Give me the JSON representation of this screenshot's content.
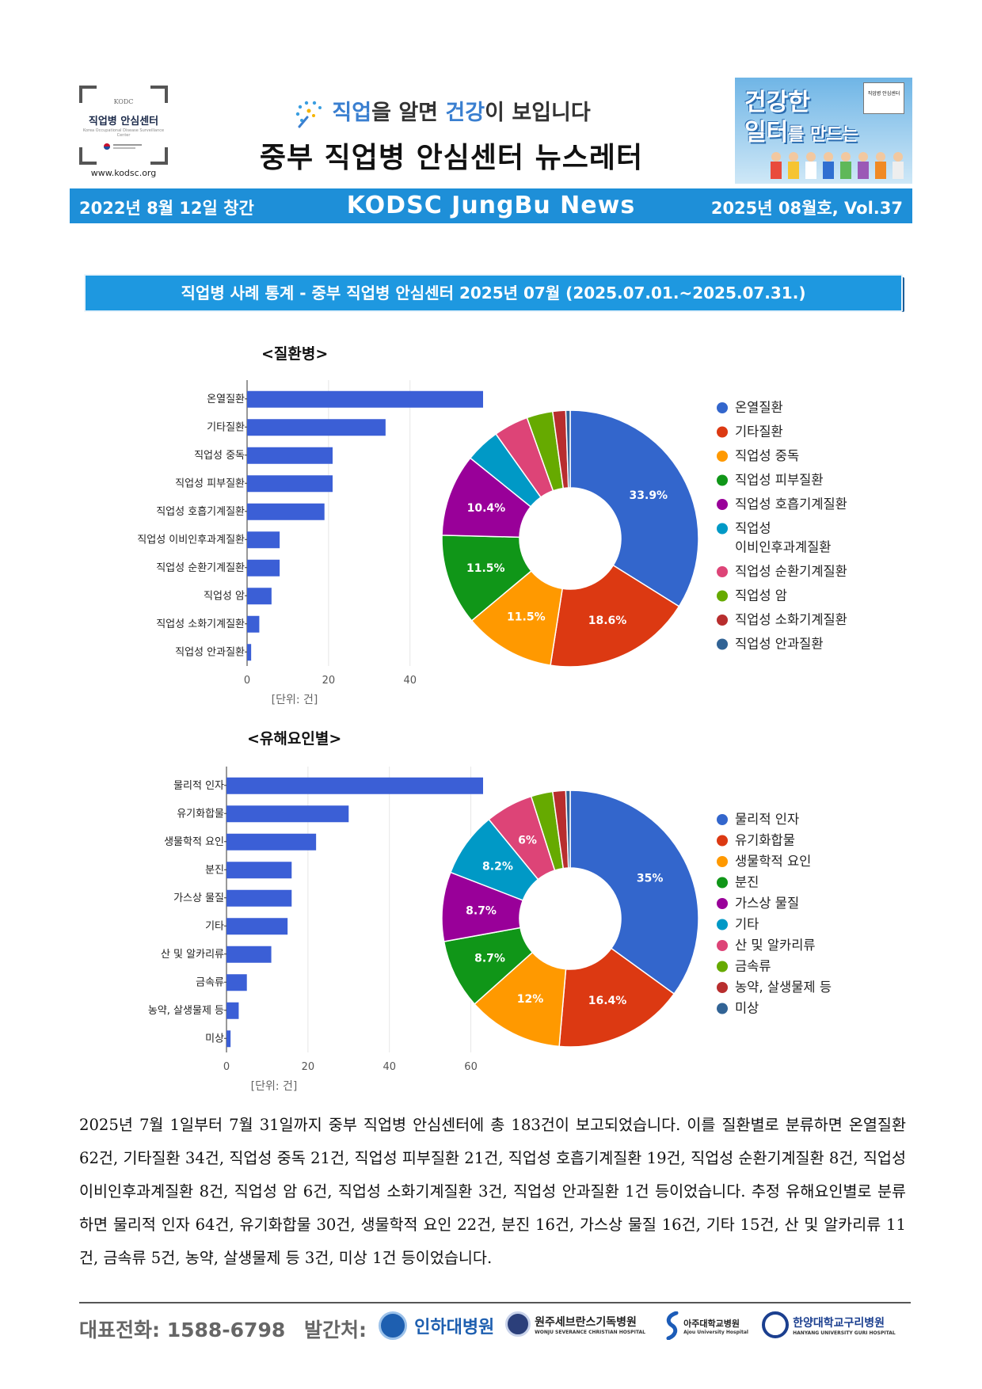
{
  "header": {
    "logo_small": "KODC",
    "logo_name": "직업병 안심센터",
    "logo_sub": "Korea Occupational Disease Surveillance Center",
    "site_url": "www.kodsc.org",
    "slogan_part1": "직업",
    "slogan_part2": "을 알면 ",
    "slogan_part3": "건강",
    "slogan_part4": "이 보입니다",
    "title": "중부 직업병 안심센터 뉴스레터",
    "banner_line1": "건강한",
    "banner_line2a": "일터",
    "banner_line2b": "를 만드는",
    "banner_mini": "직업병 안심센터"
  },
  "datebar": {
    "left": "2022년 8월 12일 창간",
    "center": "KODSC JungBu News",
    "right": "2025년 08월호, Vol.37"
  },
  "section_title": "직업병 사례 통계 - 중부 직업병 안심센터   2025년 07월 (2025.07.01.~2025.07.31.)",
  "colors": {
    "series": [
      "#3366cc",
      "#dc3912",
      "#ff9900",
      "#109618",
      "#990099",
      "#0099c6",
      "#dd4477",
      "#66aa00",
      "#b82e2e",
      "#316395"
    ],
    "bar": "#3b5fd6",
    "header_bar": "#1e8fd8"
  },
  "chart_data": [
    {
      "type": "bar",
      "title": "<질환병>",
      "orientation": "horizontal",
      "categories": [
        "온열질환",
        "기타질환",
        "직업성 중독",
        "직업성 피부질환",
        "직업성 호흡기계질환",
        "직업성 이비인후과계질환",
        "직업성 순환기계질환",
        "직업성 암",
        "직업성 소화기계질환",
        "직업성 안과질환"
      ],
      "values": [
        62,
        34,
        21,
        21,
        19,
        8,
        8,
        6,
        3,
        1
      ],
      "xticks": [
        "0",
        "20",
        "40",
        "60"
      ],
      "xlim": [
        0,
        70
      ],
      "unit_label": "[단위: 건]"
    },
    {
      "type": "pie",
      "style": "donut",
      "legend": [
        "온열질환",
        "기타질환",
        "직업성 중독",
        "직업성 피부질환",
        "직업성 호흡기계질환",
        "직업성 이비인후과계질환",
        "직업성 순환기계질환",
        "직업성 암",
        "직업성 소화기계질환",
        "직업성 안과질환"
      ],
      "legend_lines": [
        [
          "온열질환"
        ],
        [
          "기타질환"
        ],
        [
          "직업성 중독"
        ],
        [
          "직업성 피부질환"
        ],
        [
          "직업성 호흡기계질환"
        ],
        [
          "직업성",
          "이비인후과계질환"
        ],
        [
          "직업성 순환기계질환"
        ],
        [
          "직업성 암"
        ],
        [
          "직업성 소화기계질환"
        ],
        [
          "직업성 안과질환"
        ]
      ],
      "values": [
        62,
        34,
        21,
        21,
        19,
        8,
        8,
        6,
        3,
        1
      ],
      "slice_labels": [
        "33.9%",
        "18.6%",
        "11.5%",
        "11.5%",
        "10.4%",
        "",
        "",
        "",
        "",
        ""
      ]
    },
    {
      "type": "bar",
      "title": "<유해요인별>",
      "orientation": "horizontal",
      "categories": [
        "물리적 인자",
        "유기화합물",
        "생물학적 요인",
        "분진",
        "가스상 물질",
        "기타",
        "산 및 알카리류",
        "금속류",
        "농약, 살생물제 등",
        "미상"
      ],
      "values": [
        64,
        30,
        22,
        16,
        16,
        15,
        11,
        5,
        3,
        1
      ],
      "xticks": [
        "0",
        "20",
        "40",
        "60"
      ],
      "xlim": [
        0,
        70
      ],
      "unit_label": "[단위: 건]"
    },
    {
      "type": "pie",
      "style": "donut",
      "legend": [
        "물리적 인자",
        "유기화합물",
        "생물학적 요인",
        "분진",
        "가스상 물질",
        "기타",
        "산 및 알카리류",
        "금속류",
        "농약, 살생물제 등",
        "미상"
      ],
      "legend_lines": [
        [
          "물리적 인자"
        ],
        [
          "유기화합물"
        ],
        [
          "생물학적 요인"
        ],
        [
          "분진"
        ],
        [
          "가스상 물질"
        ],
        [
          "기타"
        ],
        [
          "산 및 알카리류"
        ],
        [
          "금속류"
        ],
        [
          "농약, 살생물제 등"
        ],
        [
          "미상"
        ]
      ],
      "values": [
        64,
        30,
        22,
        16,
        16,
        15,
        11,
        5,
        3,
        1
      ],
      "slice_labels": [
        "35%",
        "16.4%",
        "12%",
        "8.7%",
        "8.7%",
        "8.2%",
        "6%",
        "",
        "",
        ""
      ]
    }
  ],
  "body_paragraph": "2025년 7월 1일부터 7월 31일까지 중부 직업병 안심센터에 총 183건이 보고되었습니다. 이를 질환별로 분류하면 온열질환 62건, 기타질환 34건, 직업성 중독 21건, 직업성 피부질환 21건, 직업성 호흡기계질환 19건, 직업성 순환기계질환 8건, 직업성 이비인후과계질환 8건, 직업성 암 6건, 직업성 소화기계질환 3건, 직업성 안과질환 1건 등이었습니다. 추정 유해요인별로 분류하면 물리적 인자 64건, 유기화합물 30건, 생물학적 요인 22건, 분진 16건, 가스상 물질 16건, 기타 15건, 산 및 알카리류 11건, 금속류 5건, 농약, 살생물제 등 3건, 미상 1건 등이었습니다.",
  "footer": {
    "phone": "대표전화: 1588-6798",
    "publisher_label": "발간처:",
    "hospitals": [
      {
        "name": "인하대병원",
        "en": ""
      },
      {
        "name": "원주세브란스기독병원",
        "en": "WONJU SEVERANCE CHRISTIAN HOSPITAL"
      },
      {
        "name": "아주대학교병원",
        "en": "Ajou University Hospital"
      },
      {
        "name": "한양대학교구리병원",
        "en": "HANYANG UNIVERSITY GURI HOSPITAL"
      }
    ]
  }
}
